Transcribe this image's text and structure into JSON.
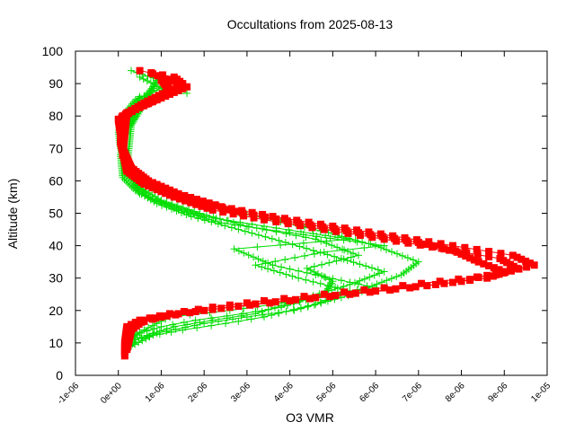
{
  "chart_data": {
    "type": "line",
    "title": "Occultations from 2025-08-13",
    "xlabel": "O3 VMR",
    "ylabel": "Altitude (km)",
    "xlim": [
      -1e-06,
      1e-05
    ],
    "ylim": [
      0,
      100
    ],
    "x_ticks": [
      {
        "value": -1e-06,
        "label": "-1e-06"
      },
      {
        "value": 0,
        "label": "0e+00"
      },
      {
        "value": 1e-06,
        "label": "1e-06"
      },
      {
        "value": 2e-06,
        "label": "2e-06"
      },
      {
        "value": 3e-06,
        "label": "3e-06"
      },
      {
        "value": 4e-06,
        "label": "4e-06"
      },
      {
        "value": 5e-06,
        "label": "5e-06"
      },
      {
        "value": 6e-06,
        "label": "6e-06"
      },
      {
        "value": 7e-06,
        "label": "7e-06"
      },
      {
        "value": 8e-06,
        "label": "8e-06"
      },
      {
        "value": 9e-06,
        "label": "9e-06"
      },
      {
        "value": 1e-05,
        "label": "1e-05"
      }
    ],
    "y_ticks": [
      {
        "value": 0,
        "label": "0"
      },
      {
        "value": 10,
        "label": "10"
      },
      {
        "value": 20,
        "label": "20"
      },
      {
        "value": 30,
        "label": "30"
      },
      {
        "value": 40,
        "label": "40"
      },
      {
        "value": 50,
        "label": "50"
      },
      {
        "value": 60,
        "label": "60"
      },
      {
        "value": 70,
        "label": "70"
      },
      {
        "value": 80,
        "label": "80"
      },
      {
        "value": 90,
        "label": "90"
      },
      {
        "value": 100,
        "label": "100"
      }
    ],
    "grid": false,
    "series": [
      {
        "color": "#00dd00",
        "marker": "plus",
        "profiles": [
          {
            "x": [
              2e-07,
              3e-07,
              6e-07,
              9e-07,
              1.2e-06,
              2.6e-06,
              4.2e-06,
              5.8e-06,
              6.6e-06,
              7e-06,
              6e-06,
              4.9e-06,
              3.6e-06,
              2.2e-06,
              1.2e-06,
              6e-07,
              2e-07,
              5e-08,
              0.0,
              1e-07,
              4e-07,
              9e-07,
              1.2e-06,
              3e-07
            ],
            "y": [
              8,
              12,
              14,
              16,
              18,
              20,
              23,
              27,
              31,
              35,
              40,
              44,
              48,
              52,
              56,
              60,
              65,
              70,
              75,
              80,
              85,
              88,
              90,
              94
            ]
          },
          {
            "x": [
              3e-07,
              4e-07,
              8e-07,
              1.3e-06,
              2.2e-06,
              3.2e-06,
              4.4e-06,
              5.4e-06,
              6.2e-06,
              5.2e-06,
              3.9e-06,
              2.8e-06,
              1.7e-06,
              9e-07,
              4e-07,
              1e-07,
              5e-08,
              2e-07,
              6e-07,
              1.1e-06,
              5e-07
            ],
            "y": [
              9,
              11,
              13,
              15,
              17,
              19,
              24,
              28,
              32,
              36,
              41,
              45,
              49,
              53,
              57,
              61,
              68,
              78,
              84,
              88,
              92
            ]
          },
          {
            "x": [
              2e-07,
              5e-07,
              1e-06,
              1.8e-06,
              2.9e-06,
              3.8e-06,
              4.8e-06,
              5e-06,
              4.4e-06,
              5.6e-06,
              4.6e-06,
              3e-06,
              1.9e-06,
              1e-06,
              5e-07,
              1.5e-07,
              1e-07,
              5e-07,
              1.6e-06
            ],
            "y": [
              10,
              13,
              15,
              17,
              19,
              21,
              25,
              29,
              33,
              37,
              42,
              46,
              50,
              54,
              58,
              62,
              72,
              86,
              87
            ]
          },
          {
            "x": [
              4e-07,
              7e-07,
              1.5e-06,
              2.5e-06,
              3.4e-06,
              4.6e-06,
              5.4e-06,
              4.2e-06,
              3.2e-06,
              4.8e-06,
              6.2e-06,
              4e-06,
              2.4e-06,
              1.4e-06,
              7e-07,
              2e-07,
              1e-07,
              4e-07,
              8e-07
            ],
            "y": [
              11,
              12,
              14,
              16,
              18,
              22,
              26,
              30,
              34,
              38,
              40,
              44,
              47,
              51,
              55,
              63,
              74,
              82,
              89
            ]
          },
          {
            "x": [
              3e-07,
              9e-07,
              2e-06,
              3e-06,
              4.1e-06,
              5.2e-06,
              6e-06,
              4.6e-06,
              3.6e-06,
              2.7e-06,
              5.4e-06,
              3.4e-06,
              2e-06,
              1.1e-06,
              5e-07,
              2e-07,
              3e-07,
              7e-07,
              9e-07
            ],
            "y": [
              9,
              13,
              16,
              18,
              20,
              24,
              27,
              31,
              34,
              39,
              42,
              46,
              49,
              53,
              56,
              64,
              77,
              86,
              91
            ]
          }
        ]
      },
      {
        "color": "#ff0000",
        "marker": "square",
        "profiles": [
          {
            "x": [
              1.5e-07,
              1.5e-07,
              2e-07,
              5e-07,
              1.2e-06,
              2.2e-06,
              3.4e-06,
              4.8e-06,
              6.2e-06,
              7.5e-06,
              8.8e-06,
              9.7e-06,
              9.2e-06,
              7.8e-06,
              6.4e-06,
              5e-06,
              3.6e-06,
              2.4e-06,
              1.4e-06,
              7e-07,
              3e-07,
              1e-07,
              0.0,
              4e-07,
              1e-06,
              1.5e-06,
              1.3e-06,
              5e-07
            ],
            "y": [
              6,
              10,
              15,
              17,
              19,
              21,
              23,
              25,
              27,
              29,
              31,
              34,
              37,
              40,
              43,
              46,
              49,
              52,
              56,
              60,
              64,
              70,
              79,
              82,
              86,
              90,
              92,
              94
            ]
          },
          {
            "x": [
              1.5e-07,
              2e-07,
              4e-07,
              1e-06,
              2e-06,
              3.2e-06,
              4.6e-06,
              6e-06,
              7.4e-06,
              8.6e-06,
              9.3e-06,
              8.9e-06,
              7.6e-06,
              6.2e-06,
              4.8e-06,
              3.4e-06,
              2.2e-06,
              1.3e-06,
              6e-07,
              2e-07,
              5e-08,
              1e-07,
              6e-07,
              1.2e-06,
              1e-06
            ],
            "y": [
              7,
              12,
              16,
              18,
              20,
              22,
              24,
              26,
              28,
              30,
              33,
              36,
              39,
              42,
              45,
              48,
              51,
              55,
              59,
              63,
              72,
              80,
              84,
              88,
              91
            ]
          },
          {
            "x": [
              2e-07,
              3e-07,
              6e-07,
              1.4e-06,
              2.6e-06,
              4e-06,
              5.4e-06,
              6.8e-06,
              8e-06,
              9e-06,
              8.4e-06,
              7.9e-06,
              7e-06,
              5.6e-06,
              4.2e-06,
              2.9e-06,
              1.8e-06,
              1e-06,
              4e-07,
              1e-07,
              2e-07,
              9e-07,
              1.6e-06,
              8e-07
            ],
            "y": [
              8,
              14,
              17,
              19,
              21,
              23,
              25,
              27,
              29,
              32,
              35,
              38,
              41,
              44,
              47,
              50,
              54,
              57,
              62,
              68,
              81,
              85,
              89,
              93
            ]
          }
        ]
      }
    ]
  }
}
